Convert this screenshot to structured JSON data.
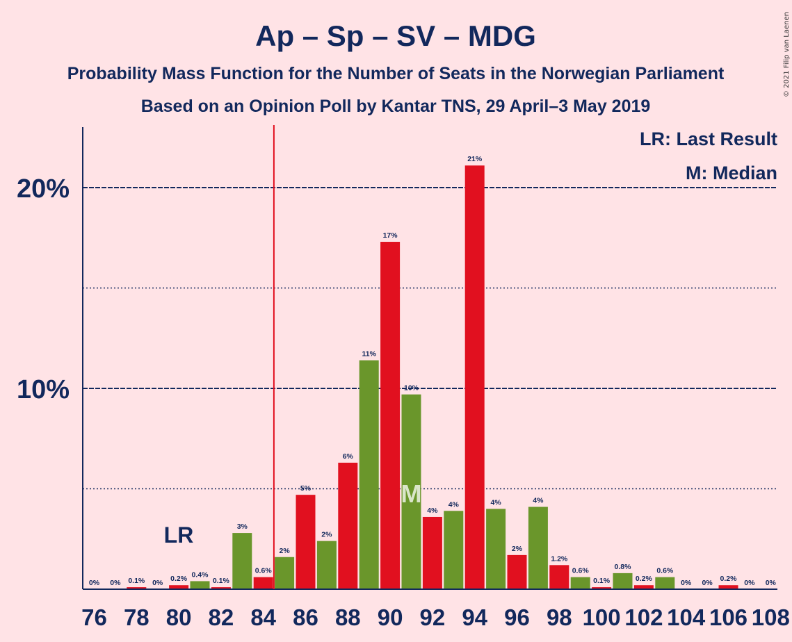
{
  "title": "Ap – Sp – SV – MDG",
  "subtitle": "Probability Mass Function for the Number of Seats in the Norwegian Parliament",
  "subtitle2": "Based on an Opinion Poll by Kantar TNS, 29 April–3 May 2019",
  "copyright": "© 2021 Filip van Laenen",
  "legend": {
    "lr": "LR: Last Result",
    "m": "M: Median"
  },
  "markers": {
    "lr_label": "LR",
    "lr_seat": 85,
    "median_label": "M",
    "median_seat": 91
  },
  "colors": {
    "background": "#ffe3e6",
    "text": "#12285c",
    "red_bar": "#e1101f",
    "green_bar": "#6a962b",
    "lr_line": "#e1101f"
  },
  "chart_data": {
    "type": "bar",
    "title": "Ap – Sp – SV – MDG",
    "xlabel": "",
    "ylabel": "",
    "ylim": [
      0,
      23
    ],
    "y_ticks": [
      10,
      20
    ],
    "y_tick_labels": [
      "10%",
      "20%"
    ],
    "y_dotted_lines": [
      5,
      15
    ],
    "x_tick_labels": [
      "76",
      "78",
      "80",
      "82",
      "84",
      "86",
      "88",
      "90",
      "92",
      "94",
      "96",
      "98",
      "100",
      "102",
      "104",
      "106",
      "108"
    ],
    "categories": [
      76,
      77,
      78,
      79,
      80,
      81,
      82,
      83,
      84,
      85,
      86,
      87,
      88,
      89,
      90,
      91,
      92,
      93,
      94,
      95,
      96,
      97,
      98,
      99,
      100,
      101,
      102,
      103,
      104,
      105,
      106,
      107,
      108
    ],
    "values": [
      0,
      0,
      0.1,
      0,
      0.2,
      0.4,
      0.1,
      2.8,
      0.6,
      1.6,
      4.7,
      2.4,
      6.3,
      11.4,
      17.3,
      9.7,
      3.6,
      3.9,
      21.1,
      4.0,
      1.7,
      4.1,
      1.2,
      0.6,
      0.1,
      0.8,
      0.2,
      0.6,
      0,
      0,
      0.2,
      0,
      0
    ],
    "labels": [
      "0%",
      "0%",
      "0.1%",
      "0%",
      "0.2%",
      "0.4%",
      "0.1%",
      "3%",
      "0.6%",
      "2%",
      "5%",
      "2%",
      "6%",
      "11%",
      "17%",
      "10%",
      "4%",
      "4%",
      "21%",
      "4%",
      "2%",
      "4%",
      "1.2%",
      "0.6%",
      "0.1%",
      "0.8%",
      "0.2%",
      "0.6%",
      "0%",
      "0%",
      "0.2%",
      "0%",
      "0%"
    ],
    "bar_colors": [
      "red",
      "red",
      "red",
      "red",
      "red",
      "green",
      "red",
      "green",
      "red",
      "green",
      "red",
      "green",
      "red",
      "green",
      "red",
      "green",
      "red",
      "green",
      "red",
      "green",
      "red",
      "green",
      "red",
      "green",
      "red",
      "green",
      "red",
      "green",
      "red",
      "green",
      "red",
      "green",
      "red"
    ],
    "grid": true
  }
}
